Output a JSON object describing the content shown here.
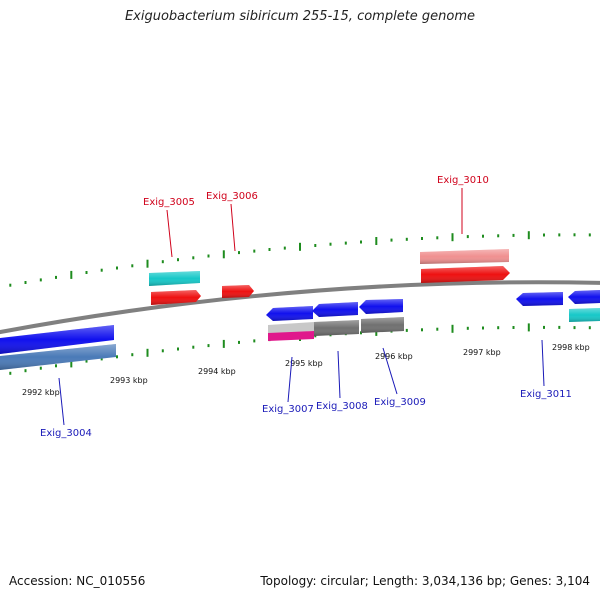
{
  "title": "Exiguobacterium sibiricum 255-15, complete genome",
  "footer": {
    "accession": "Accession: NC_010556",
    "summary": "Topology: circular; Length: 3,034,136 bp; Genes: 3,104"
  },
  "scale_labels": [
    "2992 kbp",
    "2993 kbp",
    "2994 kbp",
    "2995 kbp",
    "2996 kbp",
    "2997 kbp",
    "2998 kbp"
  ],
  "gene_labels": {
    "forward": [
      "Exig_3005",
      "Exig_3006",
      "Exig_3010"
    ],
    "reverse": [
      "Exig_3004",
      "Exig_3007",
      "Exig_3008",
      "Exig_3009",
      "Exig_3011"
    ]
  },
  "colors": {
    "backbone": "#808080",
    "ticks": "#1e8c1e",
    "gene": "#1010ee",
    "gene_forward": "#ee1010",
    "rna": "#16c8c8",
    "pseudo_light": "#f09090",
    "grey_track": "#707070",
    "steel_track": "#4a7ab8",
    "magenta_track": "#e0188c",
    "label_forward": "#d0021b",
    "label_reverse": "#1a1ab8"
  }
}
